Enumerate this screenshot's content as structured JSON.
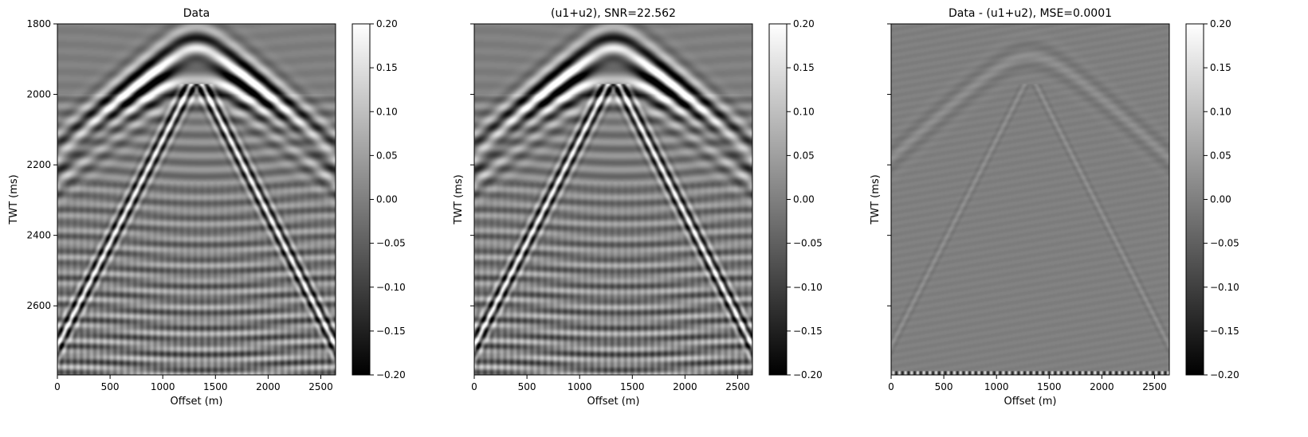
{
  "chart_data": [
    {
      "type": "heatmap",
      "title": "Data",
      "xlabel": "Offset (m)",
      "ylabel": "TWT (ms)",
      "xlim": [
        0,
        2640
      ],
      "ylim": [
        2796,
        1800
      ],
      "x_ticks": [
        0,
        500,
        1000,
        1500,
        2000,
        2500
      ],
      "y_ticks": [
        1800,
        2000,
        2200,
        2400,
        2600
      ],
      "show_y_ticklabels": true,
      "show_ylabel": true,
      "colormap": "gray",
      "color_range": [
        -0.2,
        0.2
      ],
      "colorbar_ticks": [
        "0.20",
        "0.15",
        "0.10",
        "0.05",
        "0.00",
        "−0.05",
        "−0.10",
        "−0.15",
        "−0.20"
      ],
      "residual": false
    },
    {
      "type": "heatmap",
      "title": "(u1+u2), SNR=22.562",
      "xlabel": "Offset (m)",
      "ylabel": "TWT (ms)",
      "xlim": [
        0,
        2640
      ],
      "ylim": [
        2796,
        1800
      ],
      "x_ticks": [
        0,
        500,
        1000,
        1500,
        2000,
        2500
      ],
      "y_ticks": [
        1800,
        2000,
        2200,
        2400,
        2600
      ],
      "show_y_ticklabels": false,
      "show_ylabel": true,
      "colormap": "gray",
      "color_range": [
        -0.2,
        0.2
      ],
      "colorbar_ticks": [
        "0.20",
        "0.15",
        "0.10",
        "0.05",
        "0.00",
        "−0.05",
        "−0.10",
        "−0.15",
        "−0.20"
      ],
      "residual": false
    },
    {
      "type": "heatmap",
      "title": "Data - (u1+u2), MSE=0.0001",
      "xlabel": "Offset (m)",
      "ylabel": "TWT (ms)",
      "xlim": [
        0,
        2640
      ],
      "ylim": [
        2796,
        1800
      ],
      "x_ticks": [
        0,
        500,
        1000,
        1500,
        2000,
        2500
      ],
      "y_ticks": [
        1800,
        2000,
        2200,
        2400,
        2600
      ],
      "show_y_ticklabels": false,
      "show_ylabel": true,
      "colormap": "gray",
      "color_range": [
        -0.2,
        0.2
      ],
      "colorbar_ticks": [
        "0.20",
        "0.15",
        "0.10",
        "0.05",
        "0.00",
        "−0.05",
        "−0.10",
        "−0.15",
        "−0.20"
      ],
      "residual": true
    }
  ]
}
